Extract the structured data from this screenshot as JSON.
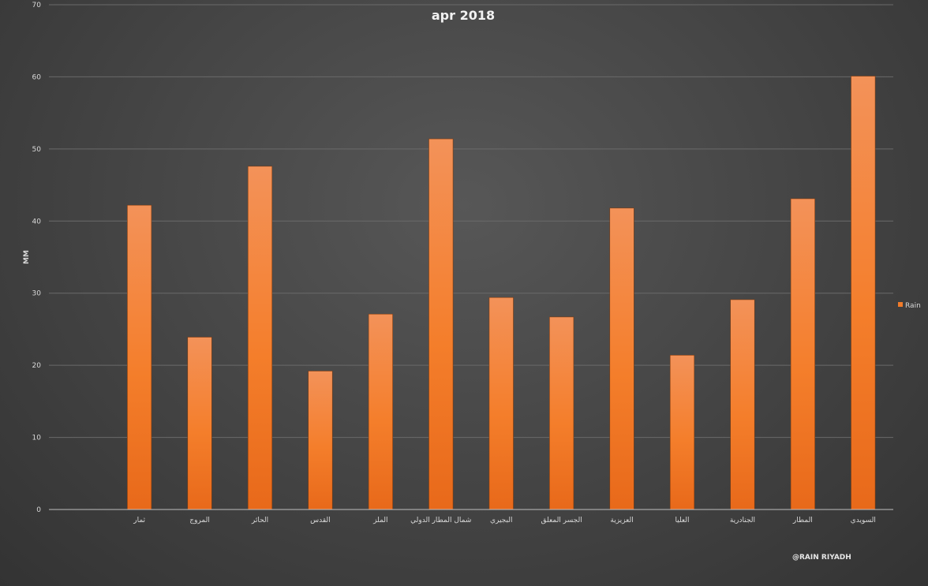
{
  "chart_data": {
    "type": "bar",
    "title": "apr 2018",
    "ylabel": "MM",
    "xlabel": "",
    "ylim": [
      0,
      70
    ],
    "yticks": [
      0,
      10,
      20,
      30,
      40,
      50,
      60,
      70
    ],
    "grid": true,
    "legend_position": "right",
    "categories": [
      "",
      "ثمار",
      "المروج",
      "الحائر",
      "القدس",
      "الملز",
      "شمال المطار الدولي",
      "البجيري",
      "الجسر المعلق",
      "العزيزية",
      "العليا",
      "الجنادرية",
      "المطار",
      "السويدي"
    ],
    "series": [
      {
        "name": "Rain",
        "color": "#f07b2a",
        "values": [
          null,
          42.2,
          23.9,
          47.6,
          19.2,
          27.1,
          51.4,
          29.4,
          26.7,
          41.8,
          21.4,
          29.1,
          43.1,
          60.1
        ]
      }
    ]
  },
  "credit": "@RAIN RIYADH"
}
